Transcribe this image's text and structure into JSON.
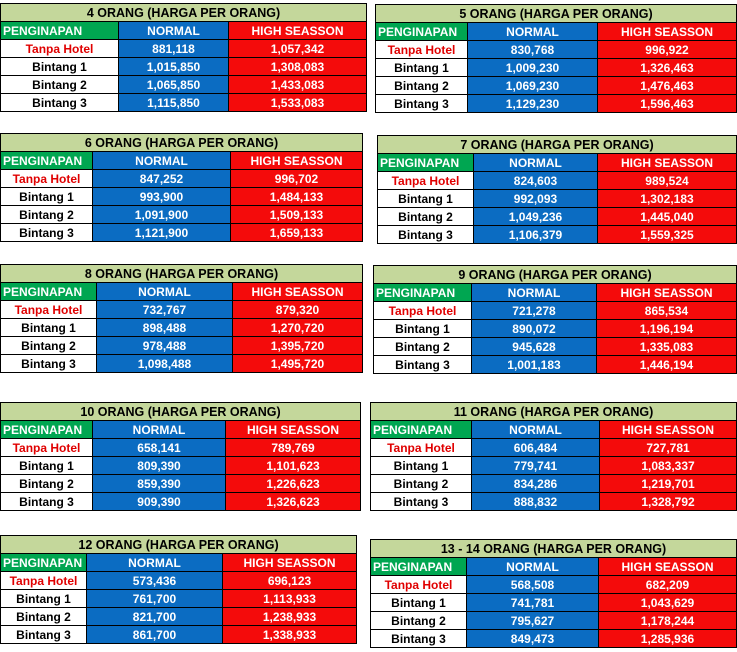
{
  "tables": [
    {
      "title": "4 ORANG (HARGA PER ORANG)",
      "header": [
        "PENGINAPAN",
        "NORMAL",
        "HIGH SEASSON"
      ],
      "rows": [
        [
          "Tanpa Hotel",
          "881,118",
          "1,057,342"
        ],
        [
          "Bintang 1",
          "1,015,850",
          "1,308,083"
        ],
        [
          "Bintang 2",
          "1,065,850",
          "1,433,083"
        ],
        [
          "Bintang 3",
          "1,115,850",
          "1,533,083"
        ]
      ]
    },
    {
      "title": "5 ORANG (HARGA PER ORANG)",
      "header": [
        "PENGINAPAN",
        "NORMAL",
        "HIGH SEASSON"
      ],
      "rows": [
        [
          "Tanpa Hotel",
          "830,768",
          "996,922"
        ],
        [
          "Bintang 1",
          "1,009,230",
          "1,326,463"
        ],
        [
          "Bintang 2",
          "1,069,230",
          "1,476,463"
        ],
        [
          "Bintang 3",
          "1,129,230",
          "1,596,463"
        ]
      ]
    },
    {
      "title": "6 ORANG (HARGA PER ORANG)",
      "header": [
        "PENGINAPAN",
        "NORMAL",
        "HIGH SEASSON"
      ],
      "rows": [
        [
          "Tanpa Hotel",
          "847,252",
          "996,702"
        ],
        [
          "Bintang 1",
          "993,900",
          "1,484,133"
        ],
        [
          "Bintang 2",
          "1,091,900",
          "1,509,133"
        ],
        [
          "Bintang 3",
          "1,121,900",
          "1,659,133"
        ]
      ]
    },
    {
      "title": "7 ORANG (HARGA PER ORANG)",
      "header": [
        "PENGINAPAN",
        "NORMAL",
        "HIGH SEASSON"
      ],
      "rows": [
        [
          "Tanpa Hotel",
          "824,603",
          "989,524"
        ],
        [
          "Bintang 1",
          "992,093",
          "1,302,183"
        ],
        [
          "Bintang 2",
          "1,049,236",
          "1,445,040"
        ],
        [
          "Bintang 3",
          "1,106,379",
          "1,559,325"
        ]
      ]
    },
    {
      "title": "8 ORANG (HARGA PER ORANG)",
      "header": [
        "PENGINAPAN",
        "NORMAL",
        "HIGH SEASSON"
      ],
      "rows": [
        [
          "Tanpa Hotel",
          "732,767",
          "879,320"
        ],
        [
          "Bintang 1",
          "898,488",
          "1,270,720"
        ],
        [
          "Bintang 2",
          "978,488",
          "1,395,720"
        ],
        [
          "Bintang 3",
          "1,098,488",
          "1,495,720"
        ]
      ]
    },
    {
      "title": "9 ORANG (HARGA PER ORANG)",
      "header": [
        "PENGINAPAN",
        "NORMAL",
        "HIGH SEASSON"
      ],
      "rows": [
        [
          "Tanpa Hotel",
          "721,278",
          "865,534"
        ],
        [
          "Bintang 1",
          "890,072",
          "1,196,194"
        ],
        [
          "Bintang 2",
          "945,628",
          "1,335,083"
        ],
        [
          "Bintang 3",
          "1,001,183",
          "1,446,194"
        ]
      ]
    },
    {
      "title": "10 ORANG (HARGA PER ORANG)",
      "header": [
        "PENGINAPAN",
        "NORMAL",
        "HIGH SEASSON"
      ],
      "rows": [
        [
          "Tanpa Hotel",
          "658,141",
          "789,769"
        ],
        [
          "Bintang 1",
          "809,390",
          "1,101,623"
        ],
        [
          "Bintang 2",
          "859,390",
          "1,226,623"
        ],
        [
          "Bintang 3",
          "909,390",
          "1,326,623"
        ]
      ]
    },
    {
      "title": "11 ORANG (HARGA PER ORANG)",
      "header": [
        "PENGINAPAN",
        "NORMAL",
        "HIGH SEASSON"
      ],
      "rows": [
        [
          "Tanpa Hotel",
          "606,484",
          "727,781"
        ],
        [
          "Bintang 1",
          "779,741",
          "1,083,337"
        ],
        [
          "Bintang 2",
          "834,286",
          "1,219,701"
        ],
        [
          "Bintang 3",
          "888,832",
          "1,328,792"
        ]
      ]
    },
    {
      "title": "12 ORANG (HARGA PER ORANG)",
      "header": [
        "PENGINAPAN",
        "NORMAL",
        "HIGH SEASSON"
      ],
      "rows": [
        [
          "Tanpa Hotel",
          "573,436",
          "696,123"
        ],
        [
          "Bintang 1",
          "761,700",
          "1,113,933"
        ],
        [
          "Bintang 2",
          "821,700",
          "1,238,933"
        ],
        [
          "Bintang 3",
          "861,700",
          "1,338,933"
        ]
      ]
    },
    {
      "title": "13 - 14 ORANG (HARGA PER ORANG)",
      "header": [
        "PENGINAPAN",
        "NORMAL",
        "HIGH SEASSON"
      ],
      "rows": [
        [
          "Tanpa Hotel",
          "568,508",
          "682,209"
        ],
        [
          "Bintang 1",
          "741,781",
          "1,043,629"
        ],
        [
          "Bintang 2",
          "795,627",
          "1,178,244"
        ],
        [
          "Bintang 3",
          "849,473",
          "1,285,936"
        ]
      ]
    }
  ],
  "colors": {
    "title_bg": "#c4d79b",
    "penginapan_bg": "#00a651",
    "normal_bg": "#0b6cc2",
    "high_bg": "#f40b0b",
    "tanpa_hotel_text": "#e00000"
  }
}
